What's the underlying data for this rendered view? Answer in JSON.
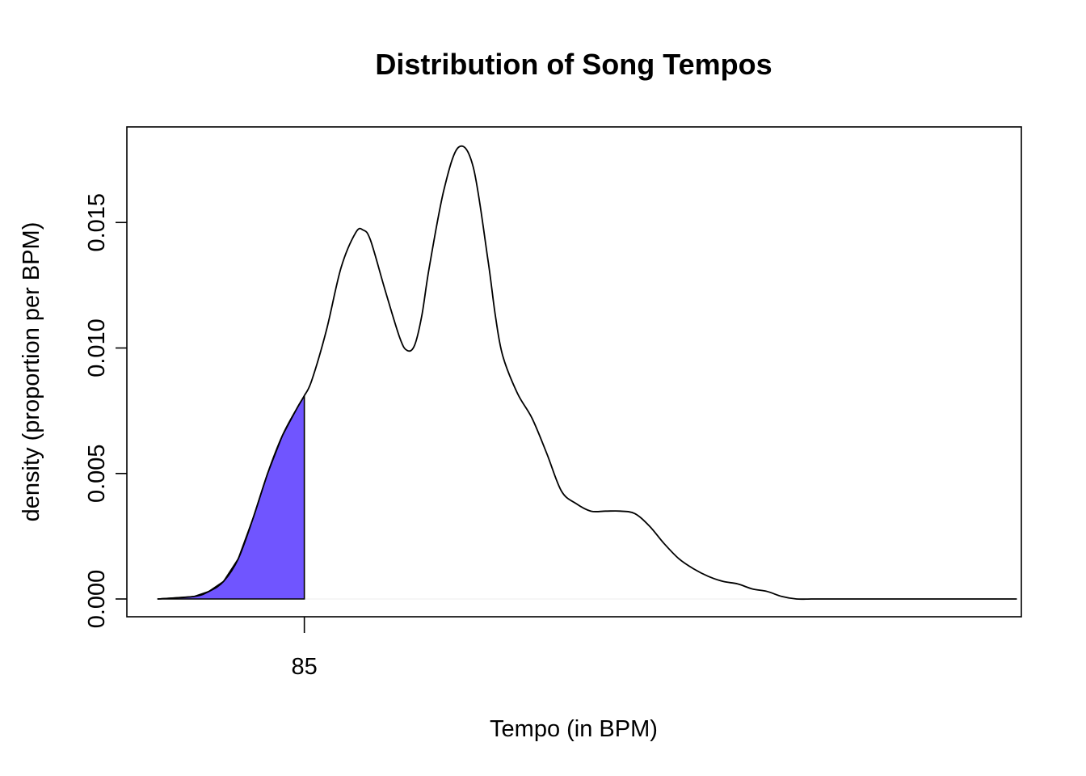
{
  "chart_data": {
    "type": "area",
    "title": "Distribution of Song Tempos",
    "xlabel": "Tempo (in BPM)",
    "ylabel": "density (proportion per BPM)",
    "xlim": [
      60.84,
      182.61
    ],
    "ylim": [
      0,
      0.0181
    ],
    "x_ticks": [
      85
    ],
    "x_tick_labels": [
      "85"
    ],
    "y_ticks": [
      0,
      0.005,
      0.01,
      0.015
    ],
    "y_tick_labels": [
      "0.000",
      "0.005",
      "0.010",
      "0.015"
    ],
    "grid": false,
    "legend": "none",
    "shaded_region": {
      "from": 65,
      "to": 85,
      "color": "#7055FF"
    },
    "series": [
      {
        "x": [
          65,
          70,
          72,
          74,
          76,
          78,
          80,
          82,
          84,
          85,
          86,
          88,
          90,
          92,
          93,
          94,
          96,
          98,
          99,
          100,
          101,
          102,
          104,
          106,
          108,
          110,
          111,
          112,
          114,
          116,
          118,
          120,
          122,
          124,
          126,
          128,
          130,
          132,
          134,
          136,
          138,
          140,
          142,
          144,
          146,
          148,
          150,
          152,
          154,
          156,
          158,
          160,
          162,
          164,
          166,
          168,
          170,
          172,
          174,
          176,
          178,
          180,
          182
        ],
        "y": [
          0.0,
          0.0001,
          0.0003,
          0.0007,
          0.0016,
          0.0032,
          0.005,
          0.0065,
          0.0076,
          0.0081,
          0.0087,
          0.0107,
          0.0132,
          0.0146,
          0.0147,
          0.0143,
          0.0123,
          0.0104,
          0.0099,
          0.0101,
          0.0113,
          0.0132,
          0.0163,
          0.018,
          0.0172,
          0.0135,
          0.0113,
          0.0097,
          0.0082,
          0.0072,
          0.0058,
          0.0043,
          0.0038,
          0.0035,
          0.0035,
          0.0035,
          0.0034,
          0.0029,
          0.0022,
          0.0016,
          0.0012,
          0.0009,
          0.0007,
          0.0006,
          0.0004,
          0.0003,
          0.0001,
          0.0,
          0.0,
          0.0,
          0.0,
          0.0,
          0.0,
          0.0,
          0.0,
          0.0,
          0.0,
          0.0,
          0.0,
          0.0,
          0.0,
          0.0,
          0.0
        ]
      }
    ]
  }
}
